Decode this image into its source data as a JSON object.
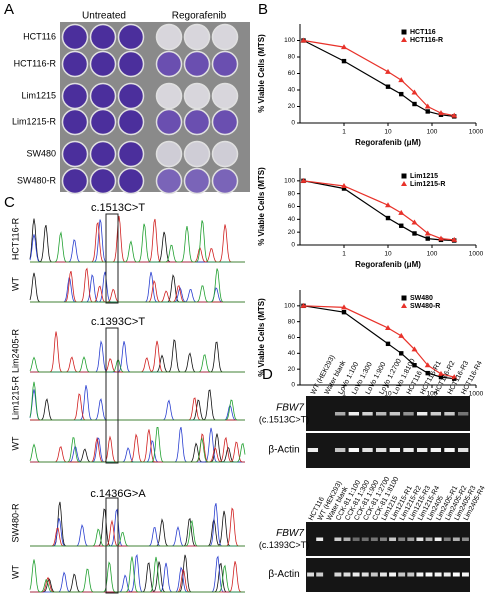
{
  "panels": {
    "A": {
      "label": "A",
      "columns": [
        "Untreated",
        "Regorafenib"
      ],
      "rows": [
        {
          "text": "HCT116",
          "color": "#000000"
        },
        {
          "text": "HCT116-R",
          "color": "#d9261c"
        },
        {
          "text": "Lim1215",
          "color": "#000000"
        },
        {
          "text": "Lim1215-R",
          "color": "#d9261c"
        },
        {
          "text": "SW480",
          "color": "#000000"
        },
        {
          "text": "SW480-R",
          "color": "#d9261c"
        }
      ]
    },
    "B": {
      "label": "B"
    },
    "C": {
      "label": "C",
      "groups": [
        {
          "mutation": "c.1513C>T",
          "samples": [
            {
              "text": "HCT116-R",
              "color": "#d9261c"
            },
            {
              "text": "WT",
              "color": "#000000"
            }
          ]
        },
        {
          "mutation": "c.1393C>T",
          "samples": [
            {
              "text": "Lim2405-R",
              "color": "#d9261c"
            },
            {
              "text": "Lim1215-R",
              "color": "#d9261c"
            },
            {
              "text": "WT",
              "color": "#000000"
            }
          ]
        },
        {
          "mutation": "c.1436G>A",
          "samples": [
            {
              "text": "SW480-R",
              "color": "#d9261c"
            },
            {
              "text": "WT",
              "color": "#000000"
            }
          ]
        }
      ]
    },
    "D": {
      "label": "D",
      "gels": [
        {
          "gene": "FBW7",
          "mutation": "(c.1513C>T)",
          "control": "β-Actin",
          "lanes": [
            "WT (HEK293)",
            "Water blank",
            "LoVo 1:100",
            "LoVo 1:300",
            "LoVo 1:900",
            "LoVo 1:2700",
            "LoVo 1:8100",
            "HCT116",
            "HCT116-R1",
            "HCT116-R2",
            "HCT116-R3",
            "HCT116-R4"
          ]
        },
        {
          "gene": "FBW7",
          "mutation": "(c.1393C>T)",
          "control": "β-Actin",
          "lanes": [
            "HCT116",
            "WT (HEK293)",
            "Water blank",
            "CCK-81 1:100",
            "CCK-81 1:300",
            "CCK-81 1:900",
            "CCK-81 1:2700",
            "CCK-81 1:8100",
            "Lim1215",
            "Lim1215-R1",
            "Lim1215-R2",
            "Lim1215-R3",
            "Lim1215-R4",
            "Lim2405",
            "Lim2405-R1",
            "Lim2405-R2",
            "Lim2405-R3",
            "Lim2405-R4"
          ]
        }
      ]
    }
  },
  "chart_data": [
    {
      "type": "line",
      "ylabel": "% Viable Cells (MTS)",
      "xlabel": "Regorafenib (μM)",
      "log_x": true,
      "x": [
        0.12,
        1,
        10,
        20,
        40,
        80,
        160,
        320
      ],
      "xlim": [
        0.1,
        1000
      ],
      "xticks": [
        1,
        10,
        100,
        1000
      ],
      "ylim": [
        0,
        120
      ],
      "yticks": [
        0,
        20,
        40,
        60,
        80,
        100
      ],
      "series": [
        {
          "name": "HCT116",
          "color": "#000000",
          "marker": "square",
          "values": [
            100,
            75,
            44,
            35,
            23,
            14,
            10,
            8
          ]
        },
        {
          "name": "HCT116-R",
          "color": "#e8322a",
          "marker": "triangle",
          "values": [
            100,
            92,
            62,
            52,
            37,
            20,
            12,
            9
          ]
        }
      ]
    },
    {
      "type": "line",
      "ylabel": "% Viable Cells (MTS)",
      "xlabel": "Regorafenib (μM)",
      "log_x": true,
      "x": [
        0.12,
        1,
        10,
        20,
        40,
        80,
        160,
        320
      ],
      "xlim": [
        0.1,
        1000
      ],
      "xticks": [
        1,
        10,
        100,
        1000
      ],
      "ylim": [
        0,
        120
      ],
      "yticks": [
        0,
        20,
        40,
        60,
        80,
        100
      ],
      "series": [
        {
          "name": "Lim1215",
          "color": "#000000",
          "marker": "square",
          "values": [
            100,
            88,
            42,
            30,
            18,
            10,
            8,
            7
          ]
        },
        {
          "name": "Lim1215-R",
          "color": "#e8322a",
          "marker": "triangle",
          "values": [
            100,
            92,
            62,
            50,
            35,
            18,
            10,
            8
          ]
        }
      ]
    },
    {
      "type": "line",
      "ylabel": "% Viable Cells (MTS)",
      "xlabel": "Regorafenib (μM)",
      "log_x": true,
      "x": [
        0.12,
        1,
        10,
        20,
        40,
        80,
        160,
        320
      ],
      "xlim": [
        0.1,
        1000
      ],
      "xticks": [
        1,
        10,
        100,
        1000
      ],
      "ylim": [
        0,
        120
      ],
      "yticks": [
        0,
        20,
        40,
        60,
        80,
        100
      ],
      "series": [
        {
          "name": "SW480",
          "color": "#000000",
          "marker": "square",
          "values": [
            100,
            92,
            52,
            40,
            25,
            15,
            10,
            8
          ]
        },
        {
          "name": "SW480-R",
          "color": "#e8322a",
          "marker": "triangle",
          "values": [
            100,
            98,
            72,
            62,
            45,
            25,
            14,
            10
          ]
        }
      ]
    }
  ]
}
